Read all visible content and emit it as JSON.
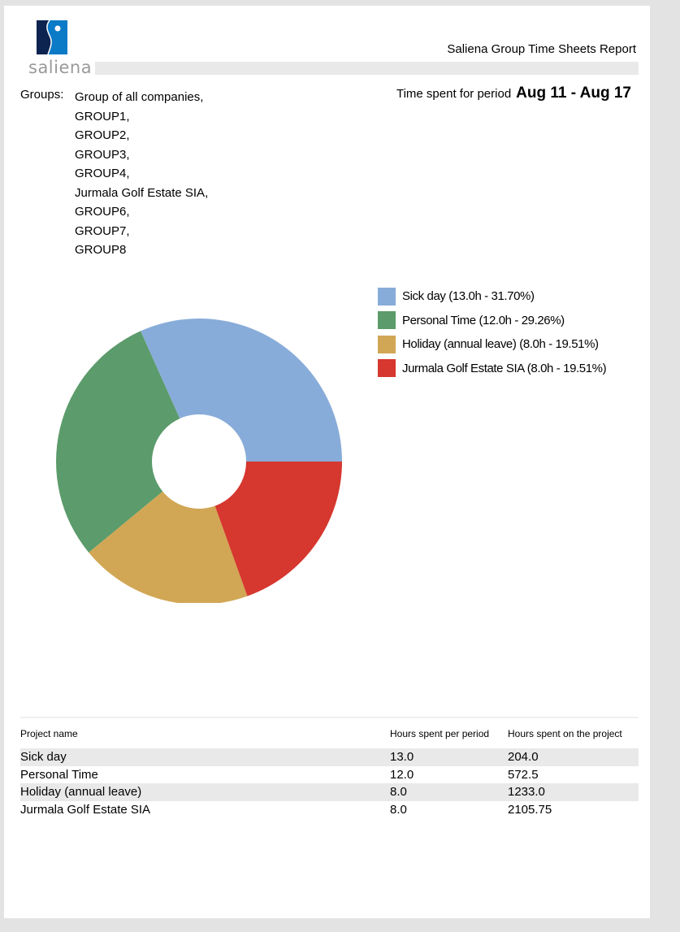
{
  "header": {
    "logo_text": "saliena",
    "report_title": "Saliena Group Time Sheets Report",
    "period_label": "Time spent for period",
    "period_value": "Aug 11 - Aug 17"
  },
  "groups": {
    "label": "Groups:",
    "items": [
      "Group of all companies,",
      "GROUP1,",
      "GROUP2,",
      "GROUP3,",
      "GROUP4,",
      "Jurmala Golf Estate SIA,",
      "GROUP6,",
      "GROUP7,",
      "GROUP8"
    ]
  },
  "legend": [
    {
      "label": "Sick day (13.0h - 31.70%)",
      "color": "#88acd9"
    },
    {
      "label": "Personal Time (12.0h - 29.26%)",
      "color": "#5c9b6b"
    },
    {
      "label": "Holiday (annual leave) (8.0h - 19.51%)",
      "color": "#d1a755"
    },
    {
      "label": "Jurmala Golf Estate SIA (8.0h - 19.51%)",
      "color": "#d6372e"
    }
  ],
  "table": {
    "headers": [
      "Project name",
      "Hours spent per period",
      "Hours spent on the project"
    ],
    "rows": [
      [
        "Sick day",
        "13.0",
        "204.0"
      ],
      [
        "Personal Time",
        "12.0",
        "572.5"
      ],
      [
        "Holiday (annual leave)",
        "8.0",
        "1233.0"
      ],
      [
        "Jurmala Golf Estate SIA",
        "8.0",
        "2105.75"
      ]
    ]
  },
  "chart_data": {
    "type": "pie",
    "title": "",
    "donut": true,
    "categories": [
      "Sick day",
      "Personal Time",
      "Holiday (annual leave)",
      "Jurmala Golf Estate SIA"
    ],
    "values": [
      13.0,
      12.0,
      8.0,
      8.0
    ],
    "percentages": [
      31.7,
      29.26,
      19.51,
      19.51
    ],
    "colors": [
      "#88acd9",
      "#5c9b6b",
      "#d1a755",
      "#d6372e"
    ],
    "legend_position": "right"
  }
}
